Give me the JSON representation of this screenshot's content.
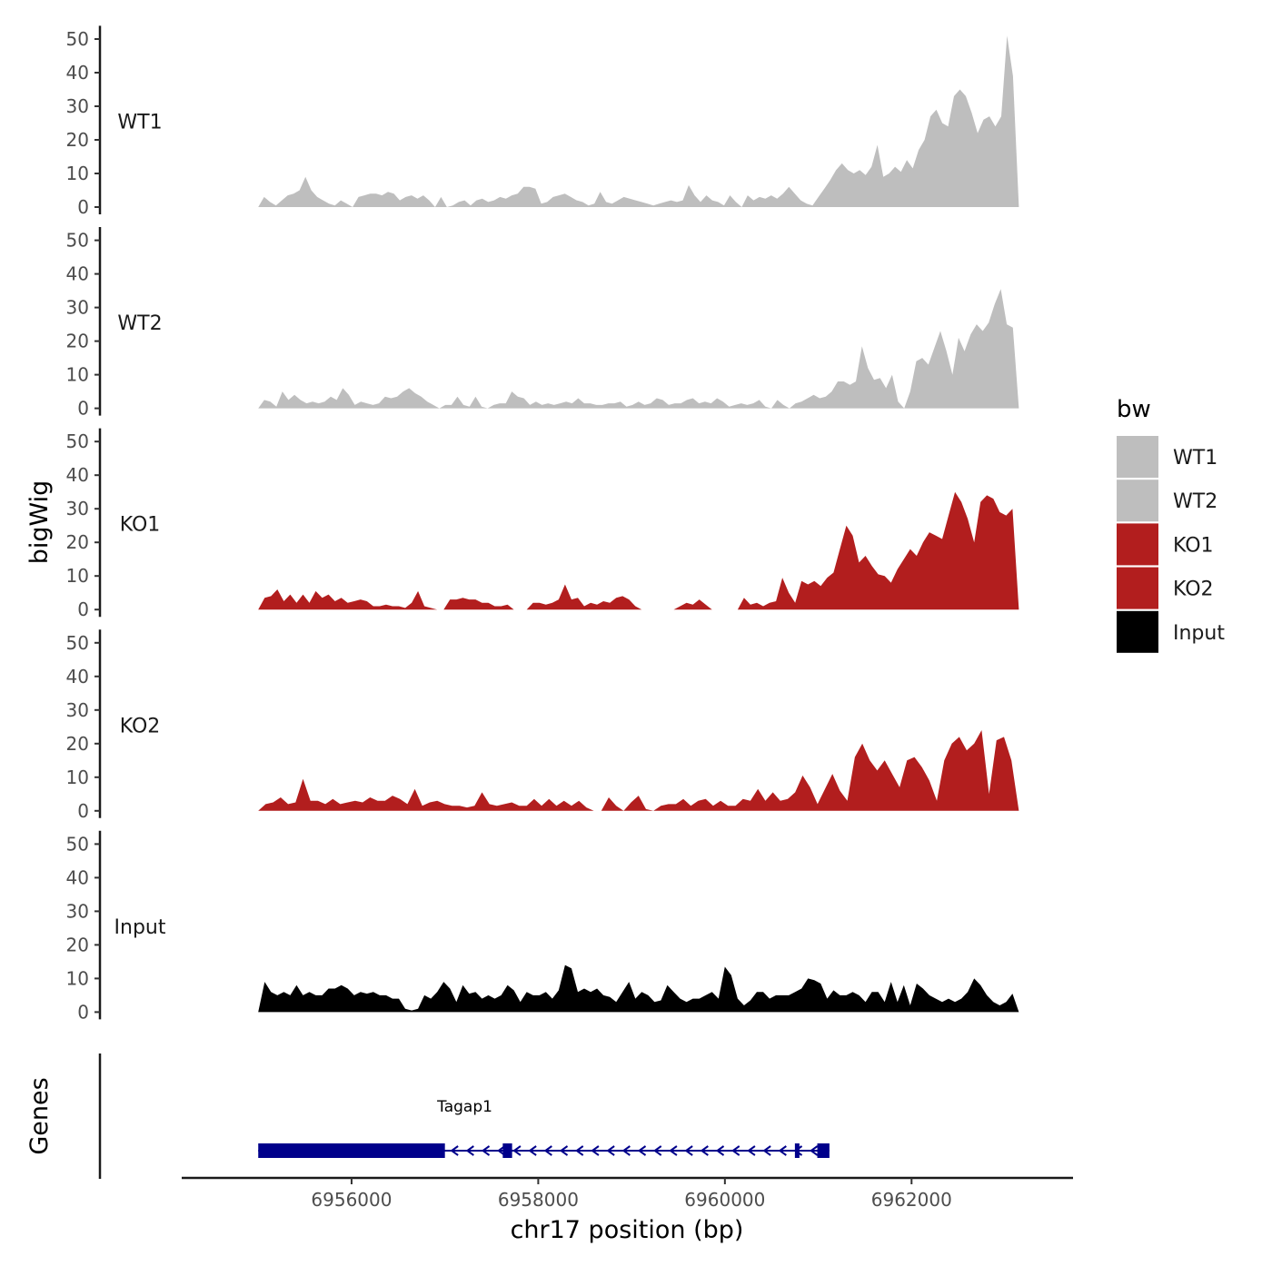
{
  "chart_data": {
    "type": "area",
    "ylabel": "bigWig",
    "xlabel": "chr17 position (bp)",
    "x_range": [
      6955000,
      6963150
    ],
    "xlim": [
      6954180,
      6963730
    ],
    "x_ticks": [
      6956000,
      6958000,
      6960000,
      6962000
    ],
    "x_tick_labels": [
      "6956000",
      "6958000",
      "6960000",
      "6962000"
    ],
    "ylim": [
      0,
      55
    ],
    "y_ticks": [
      0,
      10,
      20,
      30,
      40,
      50
    ],
    "y_tick_labels": [
      "0",
      "10",
      "20",
      "30",
      "40",
      "50"
    ],
    "series": [
      {
        "name": "WT1",
        "color": "#bebebe",
        "values": [
          0,
          3,
          1.5,
          0.5,
          2,
          3.5,
          4,
          5,
          9,
          5,
          3,
          2,
          1,
          0.5,
          2,
          1,
          0,
          3,
          3.5,
          4,
          4,
          3.5,
          4.5,
          4,
          2,
          3,
          3.5,
          2.5,
          3.5,
          2,
          0,
          3,
          0,
          0.5,
          1.5,
          2,
          0.5,
          2,
          2.5,
          1.5,
          2,
          3,
          2.5,
          3.5,
          4,
          6,
          6,
          5.5,
          1,
          1.5,
          3,
          3.5,
          4,
          3,
          2,
          1.5,
          0.5,
          1,
          4.5,
          1.5,
          1,
          2,
          3,
          2.5,
          2,
          1.5,
          1,
          0.5,
          1,
          1.5,
          2,
          1.5,
          2,
          6.5,
          3.5,
          1.5,
          3.5,
          2,
          1.5,
          0.5,
          3.5,
          1.5,
          0,
          3.5,
          2,
          3,
          2.5,
          3.5,
          2.5,
          4,
          6,
          4,
          2,
          1,
          0.5,
          3,
          5.5,
          8,
          11,
          13,
          11,
          10,
          11,
          9.5,
          12,
          18.5,
          9,
          10,
          12,
          10.5,
          14,
          11.5,
          17,
          20,
          27,
          29,
          25,
          24,
          33,
          35,
          33,
          28,
          22,
          26,
          27,
          24,
          27,
          51,
          39,
          0
        ]
      },
      {
        "name": "WT2",
        "color": "#bebebe",
        "values": [
          0,
          2.5,
          2,
          0.5,
          5,
          2.5,
          4,
          2.5,
          1.5,
          2,
          1.5,
          2,
          3.5,
          2.5,
          6,
          4,
          1,
          2,
          1.5,
          1,
          1.5,
          3.5,
          3,
          3.5,
          5,
          6,
          4.5,
          3.5,
          2,
          1,
          0,
          1,
          1,
          3.5,
          1,
          0.5,
          3.5,
          0.5,
          0,
          1,
          1.5,
          1.5,
          5,
          3.5,
          3,
          1,
          2,
          1,
          1.5,
          1,
          1.5,
          2,
          1.5,
          3,
          1.5,
          1.5,
          1,
          1,
          1.5,
          1.5,
          2,
          0.5,
          1,
          2,
          1,
          1.5,
          3,
          2.5,
          1,
          1.5,
          1.5,
          2.5,
          3,
          1.5,
          2,
          1.5,
          3,
          2,
          0.5,
          1,
          1.5,
          1,
          1.5,
          2.5,
          0.5,
          0,
          2.5,
          1,
          0,
          1.5,
          2,
          3,
          4,
          3,
          3.5,
          5,
          8,
          8,
          7,
          8,
          18.5,
          12,
          8.5,
          9,
          6,
          10,
          2,
          0,
          5,
          14,
          15,
          13,
          18,
          23,
          17,
          10,
          21,
          17,
          22,
          25,
          23,
          25.5,
          31,
          35.5,
          25,
          24,
          0
        ]
      },
      {
        "name": "KO1",
        "color": "#b21e1e",
        "values": [
          0,
          3.5,
          4,
          6,
          2.5,
          4.5,
          2,
          4.5,
          2,
          5.5,
          3.5,
          4.5,
          2.5,
          3.5,
          2,
          2.5,
          3,
          2.5,
          1,
          1,
          1.5,
          1,
          1,
          0.5,
          2,
          5.5,
          1,
          0.5,
          0,
          0,
          3,
          3,
          3.5,
          3,
          3,
          2,
          2,
          1,
          1,
          1.5,
          0,
          0,
          0,
          2,
          2,
          1.5,
          2,
          3,
          7.5,
          3,
          3.5,
          1,
          2,
          1.5,
          2.5,
          2,
          3.5,
          4,
          3,
          1,
          0,
          0,
          0,
          0,
          0,
          0,
          1,
          2,
          1.5,
          3,
          1.5,
          0,
          0,
          0,
          0,
          0,
          3.5,
          1.5,
          2,
          1,
          2,
          2.5,
          9.5,
          5,
          2,
          8.5,
          7.5,
          8.5,
          7,
          9.5,
          11,
          18,
          25,
          22,
          14,
          16,
          13,
          10.5,
          10,
          8,
          12,
          15,
          18,
          16,
          20,
          23,
          22,
          21,
          28,
          35,
          32,
          27,
          20,
          32,
          34,
          33,
          29,
          28,
          30,
          0
        ]
      },
      {
        "name": "KO2",
        "color": "#b21e1e",
        "values": [
          0,
          2,
          2.5,
          4,
          2,
          2.5,
          9.5,
          3,
          3,
          2,
          3.5,
          2,
          2.5,
          3,
          2.5,
          4,
          3,
          3,
          4.5,
          3.5,
          2,
          6.5,
          1.5,
          2.5,
          3,
          2,
          1.5,
          1.5,
          1,
          1.5,
          5.5,
          2,
          1.5,
          2,
          2.5,
          1.5,
          1.5,
          3.5,
          1.5,
          3.5,
          1.5,
          3,
          1.5,
          3,
          1,
          0,
          0,
          4,
          1.5,
          0,
          2.5,
          4.5,
          0.5,
          0,
          1.5,
          2,
          2,
          3.5,
          1.5,
          3,
          3.5,
          1.5,
          3,
          1.5,
          1.5,
          3.5,
          3,
          6.5,
          3,
          5.5,
          3,
          3.5,
          5.5,
          10.5,
          7,
          2,
          6.5,
          11,
          6,
          3,
          16,
          20,
          15,
          12,
          15,
          11,
          7,
          15,
          16,
          13,
          9,
          3,
          15,
          20,
          22,
          18,
          20,
          24,
          5,
          21,
          22,
          15,
          0
        ]
      },
      {
        "name": "Input",
        "color": "#000000",
        "values": [
          0,
          9,
          6,
          5,
          6,
          5,
          8,
          5,
          6,
          5,
          5,
          7,
          7,
          8,
          7,
          5,
          6,
          5.5,
          6,
          5,
          5,
          4,
          4,
          1,
          0.5,
          1,
          5,
          4,
          6,
          9,
          7,
          3,
          8,
          5.5,
          6,
          4,
          5,
          4,
          5,
          8,
          6.5,
          3,
          6,
          5,
          5,
          6,
          4,
          6.5,
          14,
          13,
          6,
          7,
          6,
          7,
          5,
          4.5,
          3,
          6,
          9,
          4,
          6,
          5,
          3,
          3.5,
          8,
          6,
          4,
          3,
          4,
          4,
          5,
          6,
          4,
          13.5,
          11,
          4,
          2,
          3.5,
          6,
          6,
          4,
          5,
          5,
          5,
          6,
          7,
          10,
          9.5,
          8.5,
          4,
          6.5,
          5,
          5,
          6,
          5,
          3,
          6,
          6,
          3,
          9,
          3,
          8,
          2,
          8.5,
          7,
          5,
          4,
          3,
          4,
          3,
          4,
          6,
          10,
          8,
          5,
          3,
          2,
          3,
          5.5,
          0
        ]
      }
    ],
    "legend": {
      "title": "bw",
      "position": "right",
      "entries": [
        {
          "label": "WT1",
          "color": "#bebebe"
        },
        {
          "label": "WT2",
          "color": "#bebebe"
        },
        {
          "label": "KO1",
          "color": "#b21e1e"
        },
        {
          "label": "KO2",
          "color": "#b21e1e"
        },
        {
          "label": "Input",
          "color": "#000000"
        }
      ]
    },
    "genes_track": {
      "label": "Genes",
      "color": "#00008b",
      "genes": [
        {
          "name": "Tagap1",
          "strand": "-",
          "start": 6955000,
          "end": 6961120,
          "exons": [
            [
              6955000,
              6957000
            ],
            [
              6957620,
              6957720
            ],
            [
              6960750,
              6960780
            ],
            [
              6960990,
              6961120
            ]
          ]
        }
      ]
    }
  }
}
